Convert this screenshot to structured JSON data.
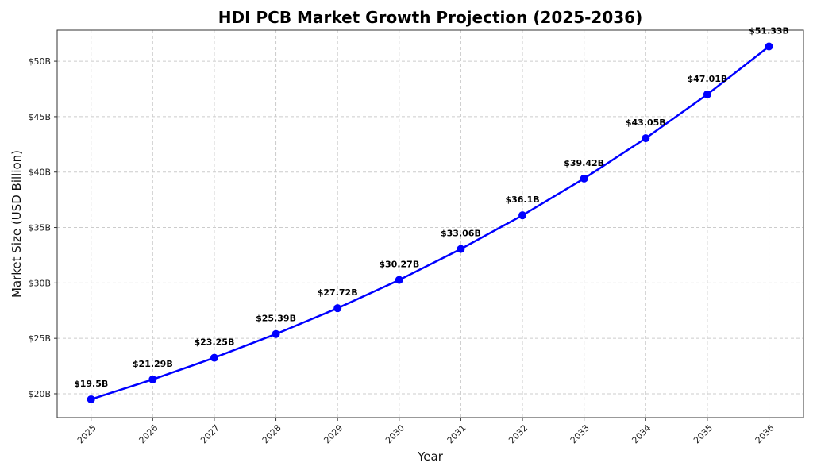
{
  "chart_data": {
    "type": "line",
    "title": "HDI PCB Market Growth Projection (2025-2036)",
    "xlabel": "Year",
    "ylabel": "Market Size (USD Billion)",
    "x": [
      2025,
      2026,
      2027,
      2028,
      2029,
      2030,
      2031,
      2032,
      2033,
      2034,
      2035,
      2036
    ],
    "x_tick_labels": [
      "2025",
      "2026",
      "2027",
      "2028",
      "2029",
      "2030",
      "2031",
      "2032",
      "2033",
      "2034",
      "2035",
      "2036"
    ],
    "series": [
      {
        "values": [
          19.5,
          21.29,
          23.25,
          25.39,
          27.72,
          30.27,
          33.06,
          36.1,
          39.42,
          43.05,
          47.01,
          51.33
        ],
        "color": "#0000ff",
        "marker": "circle"
      }
    ],
    "data_labels": [
      "$19.5B",
      "$21.29B",
      "$23.25B",
      "$25.39B",
      "$27.72B",
      "$30.27B",
      "$33.06B",
      "$36.1B",
      "$39.42B",
      "$43.05B",
      "$47.01B",
      "$51.33B"
    ],
    "y_ticks": [
      20,
      25,
      30,
      35,
      40,
      45,
      50
    ],
    "y_tick_labels": [
      "$20B",
      "$25B",
      "$30B",
      "$35B",
      "$40B",
      "$45B",
      "$50B"
    ],
    "xlim": [
      2024.45,
      2036.56
    ],
    "ylim": [
      17.85,
      52.8
    ],
    "grid": true,
    "grid_style": "dashed",
    "x_tick_rotation": 45
  }
}
